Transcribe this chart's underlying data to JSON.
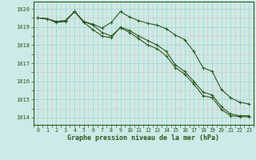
{
  "title": "Graphe pression niveau de la mer (hPa)",
  "background_color": "#cceae7",
  "grid_color": "#aad4d0",
  "line_color": "#2d5a1b",
  "spine_color": "#2d5a1b",
  "xlim": [
    -0.5,
    23.5
  ],
  "ylim": [
    1013.6,
    1020.4
  ],
  "xtick_labels": [
    "0",
    "1",
    "2",
    "3",
    "4",
    "5",
    "6",
    "7",
    "8",
    "9",
    "10",
    "11",
    "12",
    "13",
    "14",
    "15",
    "16",
    "17",
    "18",
    "19",
    "20",
    "21",
    "22",
    "23"
  ],
  "ytick_labels": [
    "1014",
    "1015",
    "1016",
    "1017",
    "1018",
    "1019",
    "1020"
  ],
  "yticks": [
    1014,
    1015,
    1016,
    1017,
    1018,
    1019,
    1020
  ],
  "xticks": [
    0,
    1,
    2,
    3,
    4,
    5,
    6,
    7,
    8,
    9,
    10,
    11,
    12,
    13,
    14,
    15,
    16,
    17,
    18,
    19,
    20,
    21,
    22,
    23
  ],
  "series": [
    [
      1019.5,
      1019.45,
      1019.3,
      1019.35,
      1019.85,
      1019.3,
      1019.15,
      1018.95,
      1019.25,
      1019.85,
      1019.55,
      1019.35,
      1019.2,
      1019.1,
      1018.9,
      1018.55,
      1018.3,
      1017.65,
      1016.75,
      1016.55,
      1015.55,
      1015.1,
      1014.85,
      1014.75
    ],
    [
      1019.5,
      1019.45,
      1019.3,
      1019.35,
      1019.85,
      1019.25,
      1018.85,
      1018.5,
      1018.4,
      1019.0,
      1018.8,
      1018.5,
      1018.25,
      1018.0,
      1017.65,
      1016.9,
      1016.55,
      1016.0,
      1015.4,
      1015.25,
      1014.6,
      1014.2,
      1014.1,
      1014.1
    ],
    [
      1019.5,
      1019.45,
      1019.25,
      1019.3,
      1019.85,
      1019.3,
      1019.1,
      1018.7,
      1018.5,
      1018.95,
      1018.7,
      1018.35,
      1018.0,
      1017.8,
      1017.4,
      1016.75,
      1016.4,
      1015.85,
      1015.2,
      1015.1,
      1014.45,
      1014.1,
      1014.05,
      1014.05
    ]
  ]
}
